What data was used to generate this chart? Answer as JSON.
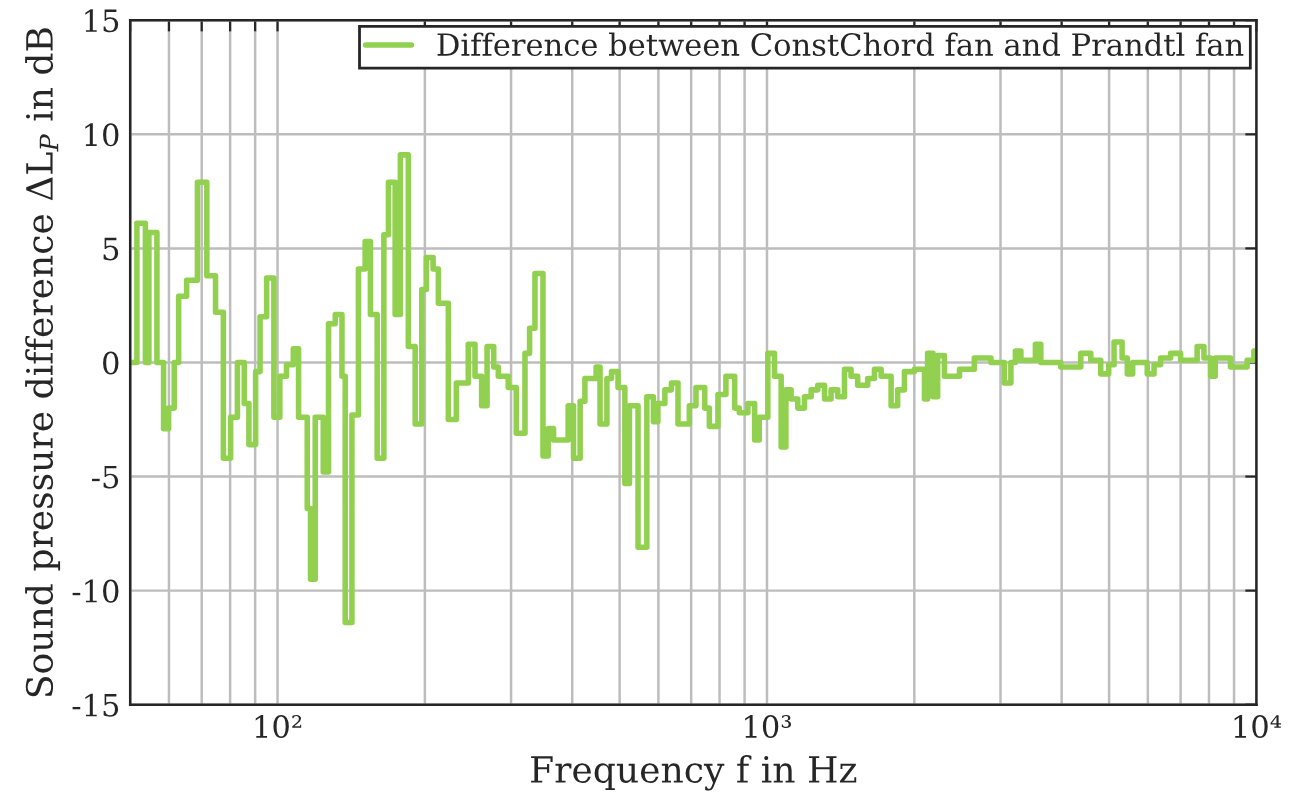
{
  "chart_data": {
    "type": "step",
    "xlabel": "Frequency f in Hz",
    "ylabel": "Sound pressure difference ΔL$_{P}$ in dB",
    "log": "x",
    "grid": true,
    "legend": "top right",
    "xlim": [
      50,
      10000
    ],
    "xticks": [
      {
        "value": 50,
        "label": null
      },
      {
        "value": 60,
        "label": null
      },
      {
        "value": 70,
        "label": null
      },
      {
        "value": 80,
        "label": null
      },
      {
        "value": 90,
        "label": null
      },
      {
        "value": 100,
        "label": "10²"
      },
      {
        "value": 200,
        "label": null
      },
      {
        "value": 300,
        "label": null
      },
      {
        "value": 400,
        "label": null
      },
      {
        "value": 500,
        "label": null
      },
      {
        "value": 600,
        "label": null
      },
      {
        "value": 700,
        "label": null
      },
      {
        "value": 800,
        "label": null
      },
      {
        "value": 900,
        "label": null
      },
      {
        "value": 1000,
        "label": "10³"
      },
      {
        "value": 2000,
        "label": null
      },
      {
        "value": 3000,
        "label": null
      },
      {
        "value": 4000,
        "label": null
      },
      {
        "value": 5000,
        "label": null
      },
      {
        "value": 6000,
        "label": null
      },
      {
        "value": 7000,
        "label": null
      },
      {
        "value": 8000,
        "label": null
      },
      {
        "value": 9000,
        "label": null
      },
      {
        "value": 10000,
        "label": "10⁴"
      }
    ],
    "ylim": [
      -15,
      15
    ],
    "yticks": [
      -15,
      -10,
      -5,
      0,
      5,
      10,
      15
    ],
    "series": [
      {
        "name": "Difference between ConstChord fan and Prandtl fan",
        "color": "#92d050",
        "x": [
          50,
          51.6,
          53.7,
          54.6,
          56.7,
          58.5,
          59.9,
          61.5,
          62.8,
          65.2,
          68.6,
          71.7,
          74.7,
          77.5,
          80.2,
          82.8,
          85.5,
          87.4,
          90.2,
          92.1,
          95.0,
          98.3,
          101.1,
          104.3,
          107.7,
          110.4,
          115.0,
          116.8,
          119.4,
          124.0,
          127.1,
          131.2,
          135.4,
          137.5,
          141.9,
          146.3,
          151.0,
          154.8,
          159.8,
          164.9,
          168.5,
          173.9,
          178.2,
          185.0,
          191.1,
          197.1,
          201.4,
          207.9,
          213.1,
          223.3,
          231.9,
          245.3,
          253.2,
          261.2,
          268.0,
          276.5,
          282.5,
          296.0,
          307.4,
          320.3,
          327.3,
          335.7,
          348.6,
          357.2,
          366.4,
          392.4,
          402.5,
          415.2,
          424.6,
          447.6,
          456.0,
          470.9,
          481.2,
          496.2,
          512.4,
          523.6,
          545.2,
          568.2,
          586.1,
          598.6,
          618.5,
          638.0,
          658.0,
          694.0,
          715.9,
          746.1,
          762.5,
          793.9,
          824.3,
          859.0,
          877.9,
          913.9,
          943.6,
          964.3,
          1004,
          1036,
          1069,
          1093,
          1120,
          1156,
          1193,
          1231,
          1270,
          1311,
          1352,
          1395,
          1440,
          1485,
          1532,
          1606,
          1658,
          1711,
          1793,
          1849,
          1909,
          2001,
          2098,
          2129,
          2184,
          2232,
          2304,
          2474,
          2652,
          2868,
          3053,
          3150,
          3218,
          3302,
          3535,
          3626,
          3983,
          4376,
          4587,
          4807,
          4991,
          5118,
          5315,
          5447,
          5587,
          5983,
          6178,
          6371,
          6678,
          7000,
          7566,
          7812,
          8062,
          8237,
          8851,
          9571,
          9882,
          10000
        ],
        "values": [
          0,
          6.1,
          0,
          5.7,
          0,
          -2.9,
          -2.0,
          0,
          2.9,
          3.6,
          7.9,
          3.8,
          2.2,
          -4.2,
          -2.4,
          0,
          -1.8,
          -3.6,
          -0.4,
          2.0,
          3.7,
          -2.4,
          -0.6,
          -0.1,
          0.6,
          -2.4,
          -6.4,
          -9.5,
          -2.4,
          -4.8,
          1.7,
          2.1,
          -0.6,
          -11.4,
          -2.3,
          4.1,
          5.3,
          2.1,
          -4.2,
          5.6,
          7.9,
          2.1,
          9.1,
          0.7,
          -2.7,
          3.2,
          4.6,
          4.1,
          2.6,
          -2.5,
          -0.9,
          0.8,
          -0.6,
          -1.9,
          0.7,
          -0.2,
          -0.6,
          -1.1,
          -3.1,
          0.4,
          1.5,
          3.9,
          -4.1,
          -2.9,
          -3.4,
          -1.9,
          -4.2,
          -1.7,
          -0.7,
          -0.2,
          -2.7,
          -0.7,
          -0.4,
          -1.1,
          -5.3,
          -1.9,
          -8.1,
          -1.5,
          -2.6,
          -1.8,
          -1.2,
          -0.9,
          -2.7,
          -1.9,
          -1.1,
          -2.0,
          -2.8,
          -1.4,
          -0.6,
          -2.0,
          -2.2,
          -1.8,
          -3.4,
          -2.4,
          0.4,
          -0.6,
          -3.7,
          -1.2,
          -1.6,
          -2.0,
          -1.5,
          -1.2,
          -1.0,
          -1.6,
          -1.2,
          -1.5,
          -0.3,
          -0.6,
          -1.0,
          -0.7,
          -0.3,
          -0.6,
          -1.9,
          -1.2,
          -0.4,
          -0.3,
          -1.6,
          0.4,
          -1.5,
          0.3,
          -0.6,
          -0.3,
          0.2,
          0,
          -0.9,
          0,
          0.5,
          0.1,
          0.8,
          0,
          -0.2,
          0.4,
          0.1,
          -0.5,
          -0.1,
          0.9,
          0.2,
          -0.5,
          0,
          -0.5,
          -0.1,
          0.2,
          0.4,
          0.1,
          0.7,
          0.2,
          -0.6,
          0.2,
          -0.2,
          0.1,
          0.5,
          0.5
        ]
      }
    ]
  }
}
